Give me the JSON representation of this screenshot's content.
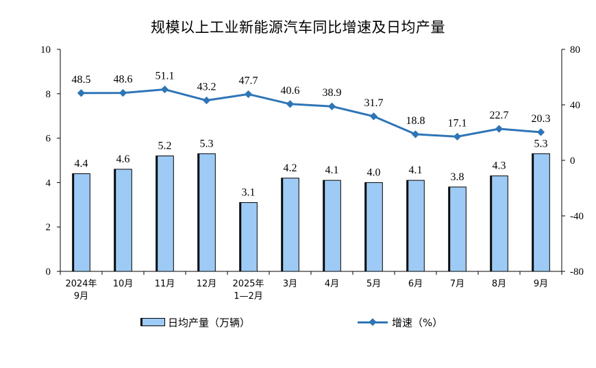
{
  "chart_data": {
    "type": "bar",
    "title": "规模以上工业新能源汽车同比增速及日均产量",
    "categories": [
      [
        "2024年",
        "9月"
      ],
      [
        "10月"
      ],
      [
        "11月"
      ],
      [
        "12月"
      ],
      [
        "2025年",
        "1—2月"
      ],
      [
        "3月"
      ],
      [
        "4月"
      ],
      [
        "5月"
      ],
      [
        "6月"
      ],
      [
        "7月"
      ],
      [
        "8月"
      ],
      [
        "9月"
      ]
    ],
    "series": [
      {
        "name": "日均产量（万辆）",
        "type": "bar",
        "axis": "left",
        "color": "#9dcbf5",
        "values": [
          4.4,
          4.6,
          5.2,
          5.3,
          3.1,
          4.2,
          4.1,
          4.0,
          4.1,
          3.8,
          4.3,
          5.3
        ],
        "labels": [
          "4.4",
          "4.6",
          "5.2",
          "5.3",
          "3.1",
          "4.2",
          "4.1",
          "4.0",
          "4.1",
          "3.8",
          "4.3",
          "5.3"
        ]
      },
      {
        "name": "增速（%）",
        "type": "line",
        "axis": "right",
        "color": "#2e75b6",
        "values": [
          48.5,
          48.6,
          51.1,
          43.2,
          47.7,
          40.6,
          38.9,
          31.7,
          18.8,
          17.1,
          22.7,
          20.3
        ],
        "labels": [
          "48.5",
          "48.6",
          "51.1",
          "43.2",
          "47.7",
          "40.6",
          "38.9",
          "31.7",
          "18.8",
          "17.1",
          "22.7",
          "20.3"
        ]
      }
    ],
    "y_left": {
      "range": [
        0,
        10
      ],
      "ticks": [
        "0",
        "2",
        "4",
        "6",
        "8",
        "10"
      ]
    },
    "y_right": {
      "range": [
        -80,
        80
      ],
      "ticks": [
        "-80",
        "-40",
        "0",
        "40",
        "80"
      ]
    },
    "grid": false,
    "legend_position": "bottom"
  }
}
